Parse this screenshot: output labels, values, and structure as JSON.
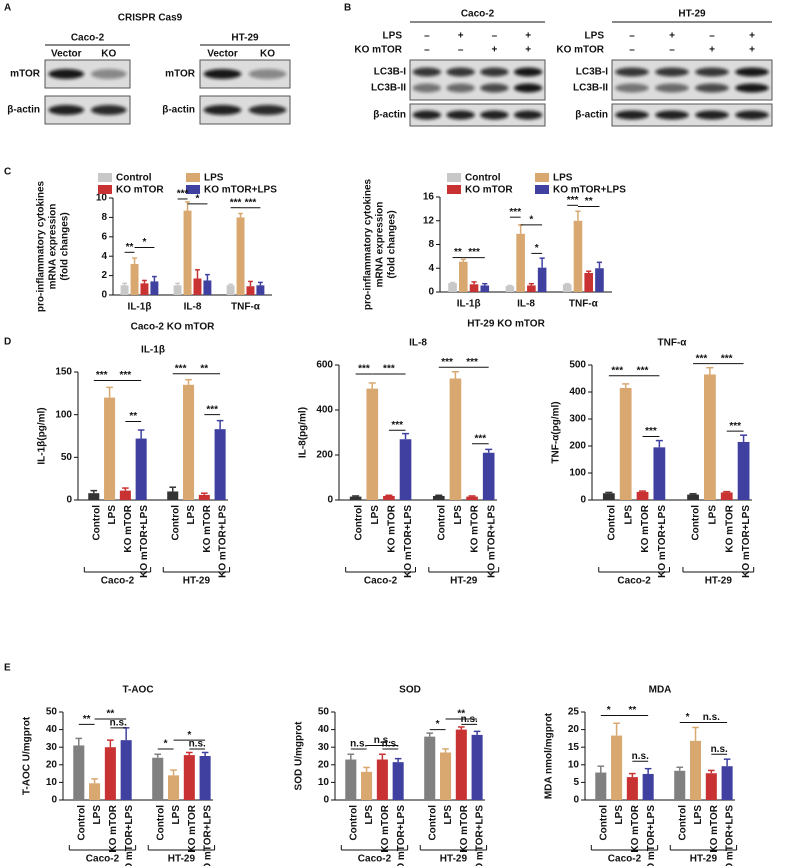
{
  "panel_labels": [
    "A",
    "B",
    "C",
    "D",
    "E"
  ],
  "blot_a": {
    "title": "CRISPR Cas9",
    "blots": [
      {
        "cell": "Caco-2",
        "lanes": [
          "Vector",
          "KO"
        ],
        "rows": [
          "mTOR",
          "β-actin"
        ]
      },
      {
        "cell": "HT-29",
        "lanes": [
          "Vector",
          "KO"
        ],
        "rows": [
          "mTOR",
          "β-actin"
        ]
      }
    ]
  },
  "blot_b": {
    "blots": [
      {
        "cell": "Caco-2",
        "conditions": [
          {
            "name": "LPS",
            "signs": [
              "–",
              "+",
              "–",
              "+"
            ]
          },
          {
            "name": "KO mTOR",
            "signs": [
              "–",
              "–",
              "+",
              "+"
            ]
          }
        ],
        "rows": [
          "LC3B-I",
          "LC3B-II",
          "β-actin"
        ]
      },
      {
        "cell": "HT-29",
        "conditions": [
          {
            "name": "LPS",
            "signs": [
              "–",
              "+",
              "–",
              "+"
            ]
          },
          {
            "name": "KO mTOR",
            "signs": [
              "–",
              "–",
              "+",
              "+"
            ]
          }
        ],
        "rows": [
          "LC3B-I",
          "LC3B-II",
          "β-actin"
        ]
      }
    ]
  },
  "chart_data": [
    {
      "type": "bar",
      "title": "Caco-2 KO mTOR",
      "ylabel": [
        "pro-inflammatory cytokines",
        "mRNA expression",
        "(fold changes)"
      ],
      "categories": [
        "IL-1β",
        "IL-8",
        "TNF-α"
      ],
      "series": [
        {
          "name": "Control",
          "color": "#c8c8c8",
          "values": [
            1.0,
            1.0,
            1.0
          ],
          "errors": [
            0.2,
            0.2,
            0.1
          ]
        },
        {
          "name": "LPS",
          "color": "#d8a870",
          "values": [
            3.2,
            8.7,
            8.0
          ],
          "errors": [
            0.6,
            0.9,
            0.4
          ]
        },
        {
          "name": "KO mTOR",
          "color": "#c83232",
          "values": [
            1.2,
            1.7,
            0.9
          ],
          "errors": [
            0.3,
            0.9,
            0.5
          ]
        },
        {
          "name": "KO mTOR+LPS",
          "color": "#4040a0",
          "values": [
            1.4,
            1.5,
            1.0
          ],
          "errors": [
            0.5,
            0.6,
            0.3
          ]
        }
      ],
      "ylim": [
        0,
        10
      ],
      "yticks": [
        0,
        2,
        4,
        6,
        8,
        10
      ],
      "annotations": [
        "**",
        "*",
        "***",
        "*",
        "***",
        "***"
      ]
    },
    {
      "type": "bar",
      "title": "HT-29 KO mTOR",
      "ylabel": [
        "pro-inflammatory cytokines",
        "mRNA expression",
        "(fold changes)"
      ],
      "categories": [
        "IL-1β",
        "IL-8",
        "TNF-α"
      ],
      "series": [
        {
          "name": "Control",
          "color": "#c8c8c8",
          "values": [
            1.5,
            1.0,
            1.3
          ],
          "errors": [
            0.1,
            0.1,
            0.1
          ]
        },
        {
          "name": "LPS",
          "color": "#d8a870",
          "values": [
            5.1,
            9.8,
            12.0
          ],
          "errors": [
            0.4,
            1.5,
            1.6
          ]
        },
        {
          "name": "KO mTOR",
          "color": "#c83232",
          "values": [
            1.3,
            1.1,
            3.2
          ],
          "errors": [
            0.4,
            0.3,
            0.3
          ]
        },
        {
          "name": "KO mTOR+LPS",
          "color": "#4040a0",
          "values": [
            1.1,
            4.1,
            4.0
          ],
          "errors": [
            0.3,
            1.6,
            1.0
          ]
        }
      ],
      "ylim": [
        0,
        16
      ],
      "yticks": [
        0,
        4,
        8,
        12,
        16
      ],
      "annotations": [
        "**",
        "***",
        "***",
        "*",
        "*",
        "***",
        "**"
      ]
    },
    {
      "type": "bar",
      "title": "IL-1β",
      "ylabel": "IL-1β(pg/ml)",
      "categories": [
        "Control",
        "LPS",
        "KO mTOR",
        "KO mTOR+LPS",
        "Control",
        "LPS",
        "KO mTOR",
        "KO mTOR+LPS"
      ],
      "groups": [
        "Caco-2",
        "HT-29"
      ],
      "colors": [
        "#333333",
        "#d8a870",
        "#c83232",
        "#4040a0"
      ],
      "values": [
        8,
        120,
        11,
        72,
        10,
        135,
        6,
        83
      ],
      "errors": [
        3,
        12,
        3,
        10,
        5,
        6,
        2,
        10
      ],
      "ylim": [
        0,
        150
      ],
      "yticks": [
        0,
        50,
        100,
        150
      ],
      "annotations": [
        "***",
        "***",
        "**",
        "***",
        "**",
        "***"
      ]
    },
    {
      "type": "bar",
      "title": "IL-8",
      "ylabel": "IL-8(pg/ml)",
      "categories": [
        "Control",
        "LPS",
        "KO mTOR",
        "KO mTOR+LPS",
        "Control",
        "LPS",
        "KO mTOR",
        "KO mTOR+LPS"
      ],
      "groups": [
        "Caco-2",
        "HT-29"
      ],
      "colors": [
        "#333333",
        "#d8a870",
        "#c83232",
        "#4040a0"
      ],
      "values": [
        15,
        495,
        18,
        270,
        18,
        540,
        15,
        210
      ],
      "errors": [
        3,
        25,
        3,
        25,
        3,
        30,
        3,
        15
      ],
      "ylim": [
        0,
        600
      ],
      "yticks": [
        0,
        200,
        400,
        600
      ],
      "annotations": [
        "***",
        "***",
        "***",
        "***",
        "***",
        "***"
      ]
    },
    {
      "type": "bar",
      "title": "TNF-α",
      "ylabel": "TNF-α(pg/ml)",
      "categories": [
        "Control",
        "LPS",
        "KO mTOR",
        "KO mTOR+LPS",
        "Control",
        "LPS",
        "KO mTOR",
        "KO mTOR+LPS"
      ],
      "groups": [
        "Caco-2",
        "HT-29"
      ],
      "colors": [
        "#333333",
        "#d8a870",
        "#c83232",
        "#4040a0"
      ],
      "values": [
        25,
        415,
        30,
        195,
        20,
        465,
        28,
        215
      ],
      "errors": [
        3,
        15,
        3,
        25,
        3,
        25,
        3,
        25
      ],
      "ylim": [
        0,
        500
      ],
      "yticks": [
        0,
        100,
        200,
        300,
        400,
        500
      ],
      "annotations": [
        "***",
        "***",
        "***",
        "***",
        "***",
        "***"
      ]
    },
    {
      "type": "bar",
      "title": "T-AOC",
      "ylabel": "T-AOC U/mgprot",
      "categories": [
        "Control",
        "LPS",
        "KO mTOR",
        "KO mTOR+LPS",
        "Control",
        "LPS",
        "KO mTOR",
        "KO mTOR+LPS"
      ],
      "groups": [
        "Caco-2",
        "HT-29"
      ],
      "colors": [
        "#808080",
        "#d8a870",
        "#c83232",
        "#4040a0"
      ],
      "values": [
        31,
        9.5,
        30,
        34,
        24,
        14,
        25.5,
        25
      ],
      "errors": [
        4,
        2.5,
        4,
        7,
        2,
        3,
        1.5,
        2
      ],
      "ylim": [
        0,
        50
      ],
      "yticks": [
        0,
        10,
        20,
        30,
        40,
        50
      ],
      "annotations": [
        "**",
        "**",
        "n.s.",
        "*",
        "*",
        "n.s."
      ]
    },
    {
      "type": "bar",
      "title": "SOD",
      "ylabel": "SOD U/mgprot",
      "categories": [
        "Control",
        "LPS",
        "KO mTOR",
        "KO mTOR+LPS",
        "Control",
        "LPS",
        "KO mTOR",
        "KO mTOR+LPS"
      ],
      "groups": [
        "Caco-2",
        "HT-29"
      ],
      "colors": [
        "#808080",
        "#d8a870",
        "#c83232",
        "#4040a0"
      ],
      "values": [
        23,
        16,
        23,
        21.5,
        36,
        27,
        40,
        37
      ],
      "errors": [
        3,
        2.5,
        3,
        2,
        2,
        2,
        1.5,
        2
      ],
      "ylim": [
        0,
        50
      ],
      "yticks": [
        0,
        10,
        20,
        30,
        40,
        50
      ],
      "annotations": [
        "n.s.",
        "n.s.",
        "n.s.",
        "*",
        "**",
        "n.s."
      ]
    },
    {
      "type": "bar",
      "title": "MDA",
      "ylabel": "MDA nmol/mgprot",
      "categories": [
        "Control",
        "LPS",
        "KO mTOR",
        "KO mTOR+LPS",
        "Control",
        "LPS",
        "KO mTOR",
        "KO mTOR+LPS"
      ],
      "groups": [
        "Caco-2",
        "HT-29"
      ],
      "colors": [
        "#808080",
        "#d8a870",
        "#c83232",
        "#4040a0"
      ],
      "values": [
        7.8,
        18.3,
        6.5,
        7.4,
        8.3,
        16.8,
        7.6,
        9.6
      ],
      "errors": [
        1.8,
        3.5,
        1,
        1.5,
        1,
        3.8,
        0.8,
        2
      ],
      "ylim": [
        0,
        25
      ],
      "yticks": [
        0,
        5,
        10,
        15,
        20,
        25
      ],
      "annotations": [
        "*",
        "**",
        "n.s.",
        "*",
        "n.s.",
        "n.s."
      ]
    }
  ]
}
